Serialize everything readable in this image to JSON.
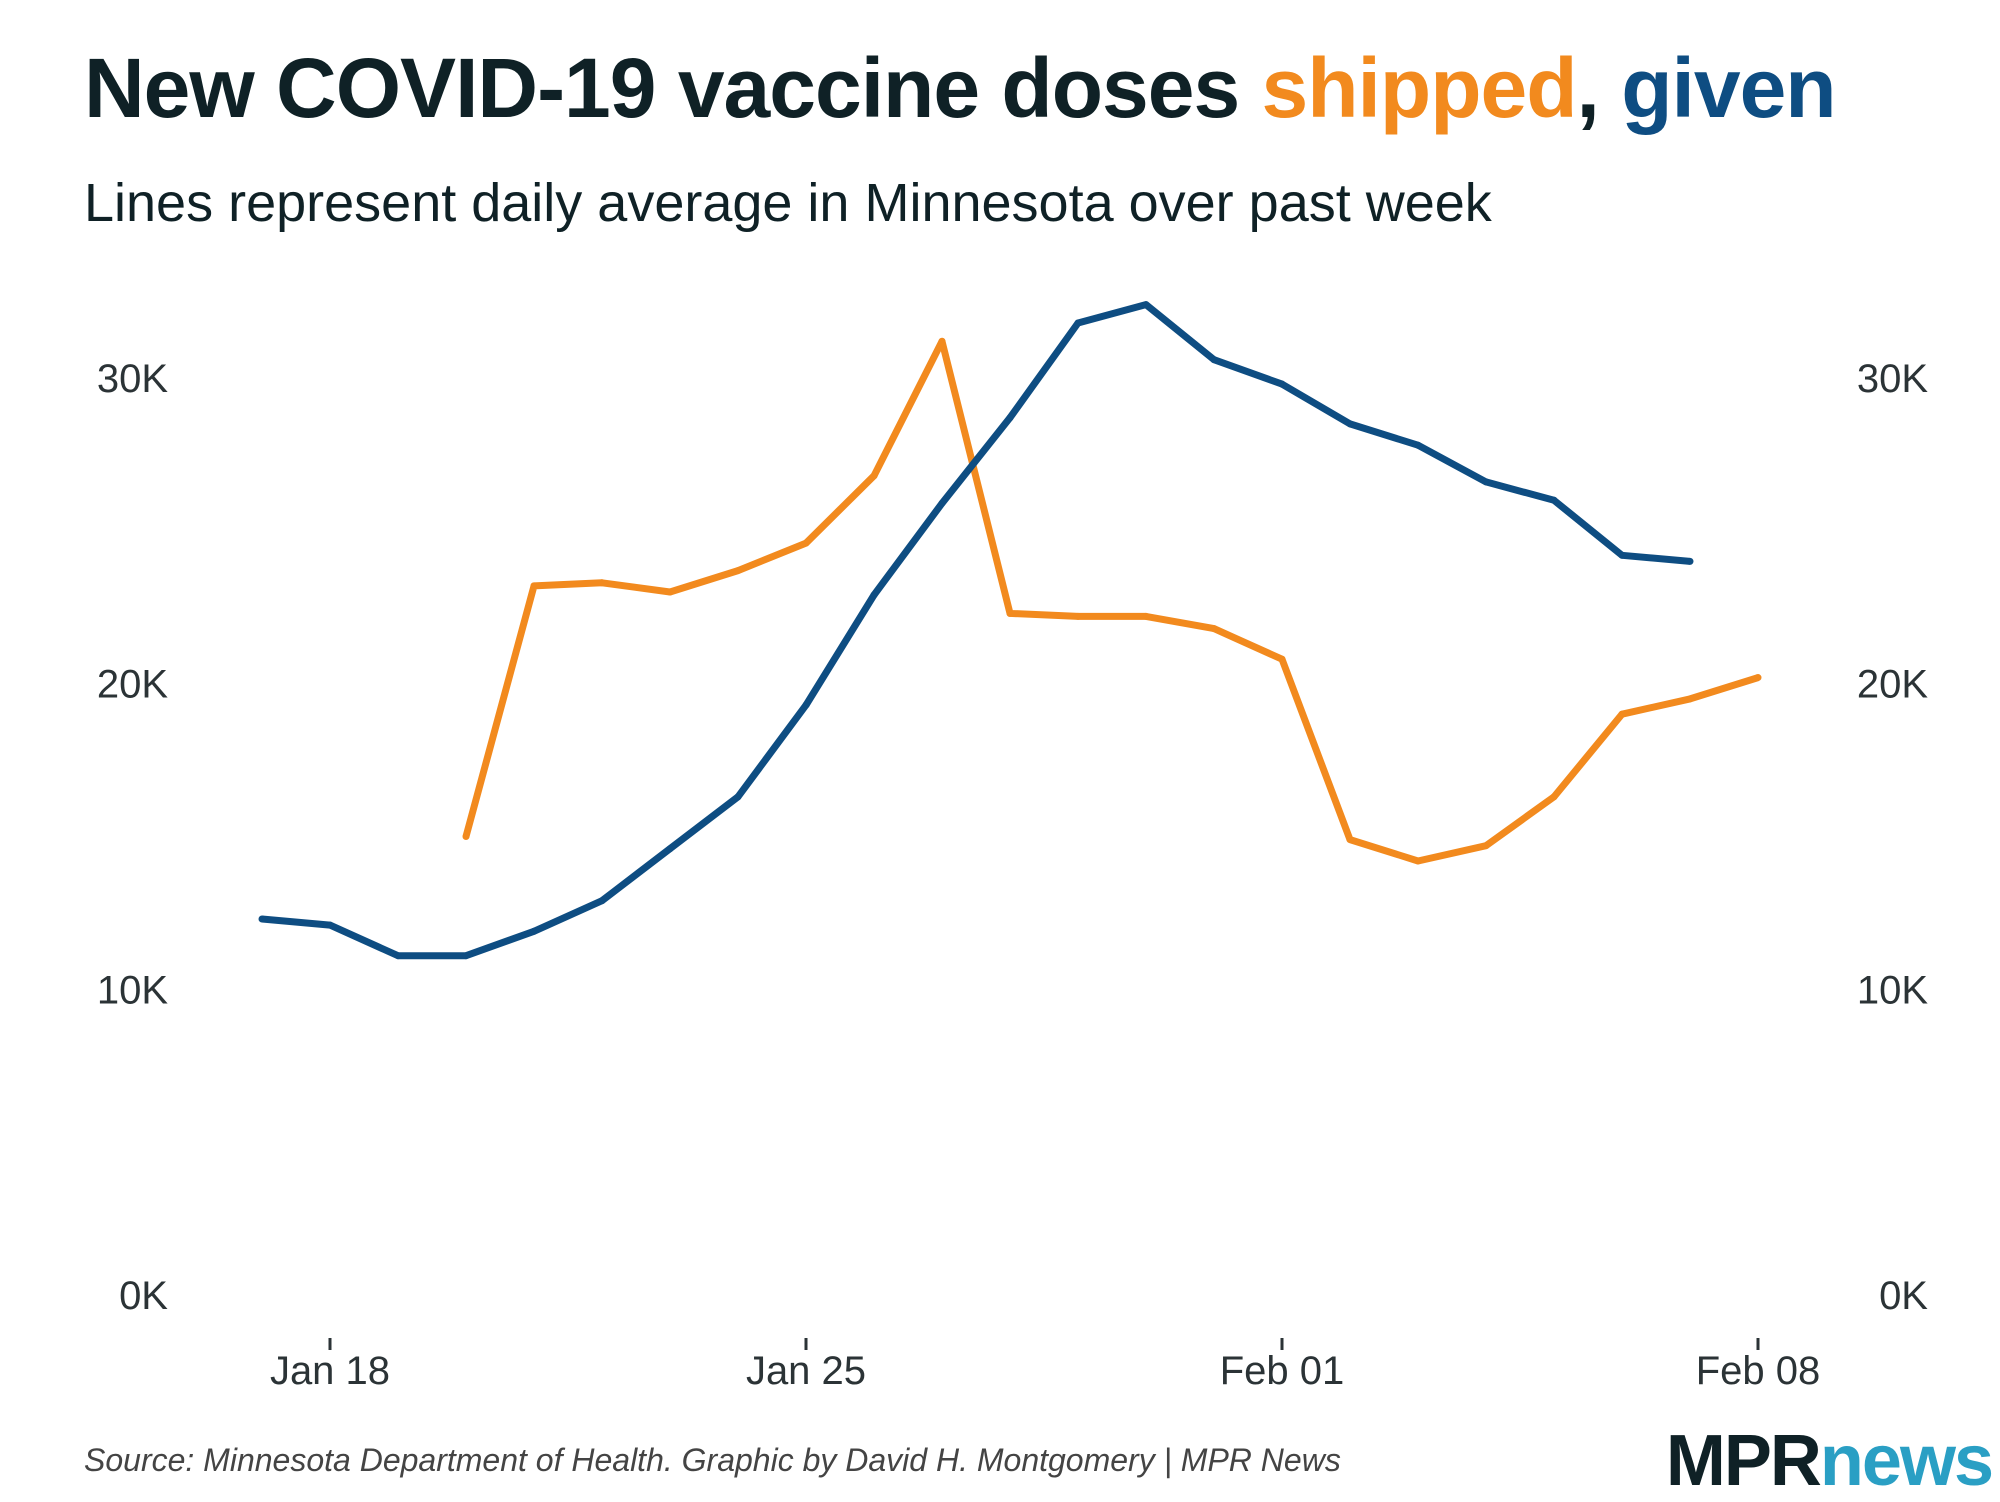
{
  "title": {
    "prefix": "New COVID-19 vaccine doses ",
    "shipped_word": "shipped",
    "separator": ", ",
    "given_word": "given"
  },
  "subtitle": "Lines represent daily average in Minnesota over past week",
  "source": "Source: Minnesota Department of Health. Graphic by David H. Montgomery | MPR News",
  "logo": {
    "mpr": "MPR",
    "news": "news"
  },
  "colors": {
    "shipped": "#f28a1e",
    "given": "#0e4d82",
    "text": "#0f2126",
    "logo_news": "#2a9fc4"
  },
  "chart_data": {
    "type": "line",
    "title": "New COVID-19 vaccine doses shipped, given",
    "subtitle": "Lines represent daily average in Minnesota over past week",
    "xlabel": "",
    "ylabel": "",
    "x_tick_labels": [
      "Jan 18",
      "Jan 25",
      "Feb 01",
      "Feb 08"
    ],
    "x_tick_days": [
      0,
      7,
      14,
      21
    ],
    "x_range_days": [
      -1,
      21
    ],
    "y_tick_labels": [
      "0K",
      "10K",
      "20K",
      "30K"
    ],
    "y_ticks": [
      0,
      10000,
      20000,
      30000
    ],
    "ylim": [
      0,
      30000
    ],
    "grid": false,
    "series": [
      {
        "name": "shipped",
        "color": "#f28a1e",
        "start_day": 2,
        "values": [
          15000,
          23200,
          23300,
          23000,
          23700,
          24600,
          26800,
          31200,
          22300,
          22200,
          22200,
          21800,
          20800,
          14900,
          14200,
          14700,
          16300,
          19000,
          19500,
          20200
        ]
      },
      {
        "name": "given",
        "color": "#0e4d82",
        "start_day": -1,
        "values": [
          12300,
          12100,
          11100,
          11100,
          11900,
          12900,
          14600,
          16300,
          19300,
          22900,
          25900,
          28700,
          31800,
          32400,
          30600,
          29800,
          28500,
          27800,
          26600,
          26000,
          24200,
          24000
        ]
      }
    ]
  }
}
